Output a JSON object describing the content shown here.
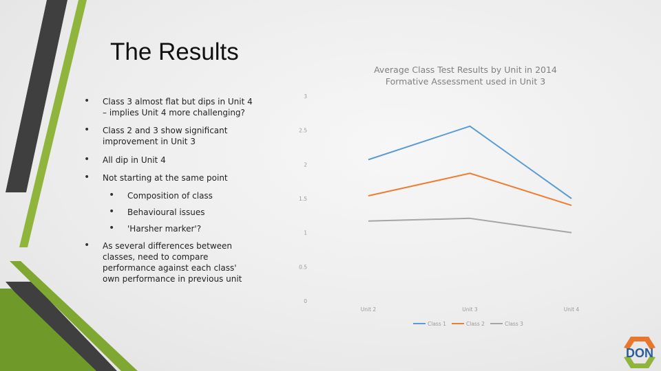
{
  "slide": {
    "title": "The Results",
    "bullets": [
      {
        "text": "Class 3 almost flat but dips in Unit 4 – implies Unit 4 more challenging?",
        "level": 1
      },
      {
        "text": "Class 2 and 3 show significant improvement in Unit 3",
        "level": 1
      },
      {
        "text": "All dip in Unit 4",
        "level": 1
      },
      {
        "text": "Not starting at the same point",
        "level": 1
      },
      {
        "text": "Composition of class",
        "level": 2
      },
      {
        "text": "Behavioural issues",
        "level": 2
      },
      {
        "text": "'Harsher marker'?",
        "level": 2
      },
      {
        "text": "As several differences between classes, need to compare performance against each class' own performance in previous unit",
        "level": 1
      }
    ],
    "logo_text": "DON"
  },
  "chart_data": {
    "type": "line",
    "title": "Average Class Test Results by Unit in 2014",
    "subtitle": "Formative Assessment used in Unit 3",
    "categories": [
      "Unit 2",
      "Unit 3",
      "Unit 4"
    ],
    "series": [
      {
        "name": "Class 1",
        "values": [
          2.07,
          2.56,
          1.5
        ],
        "color": "#5b9bd5"
      },
      {
        "name": "Class 2",
        "values": [
          1.54,
          1.87,
          1.4
        ],
        "color": "#ed7d31"
      },
      {
        "name": "Class 3",
        "values": [
          1.17,
          1.21,
          1.0
        ],
        "color": "#a5a5a5"
      }
    ],
    "yticks": [
      "0",
      "0.5",
      "1",
      "1.5",
      "2",
      "2.5",
      "3"
    ],
    "ylim": [
      0,
      3
    ],
    "grid": false,
    "legend": "bottom"
  }
}
